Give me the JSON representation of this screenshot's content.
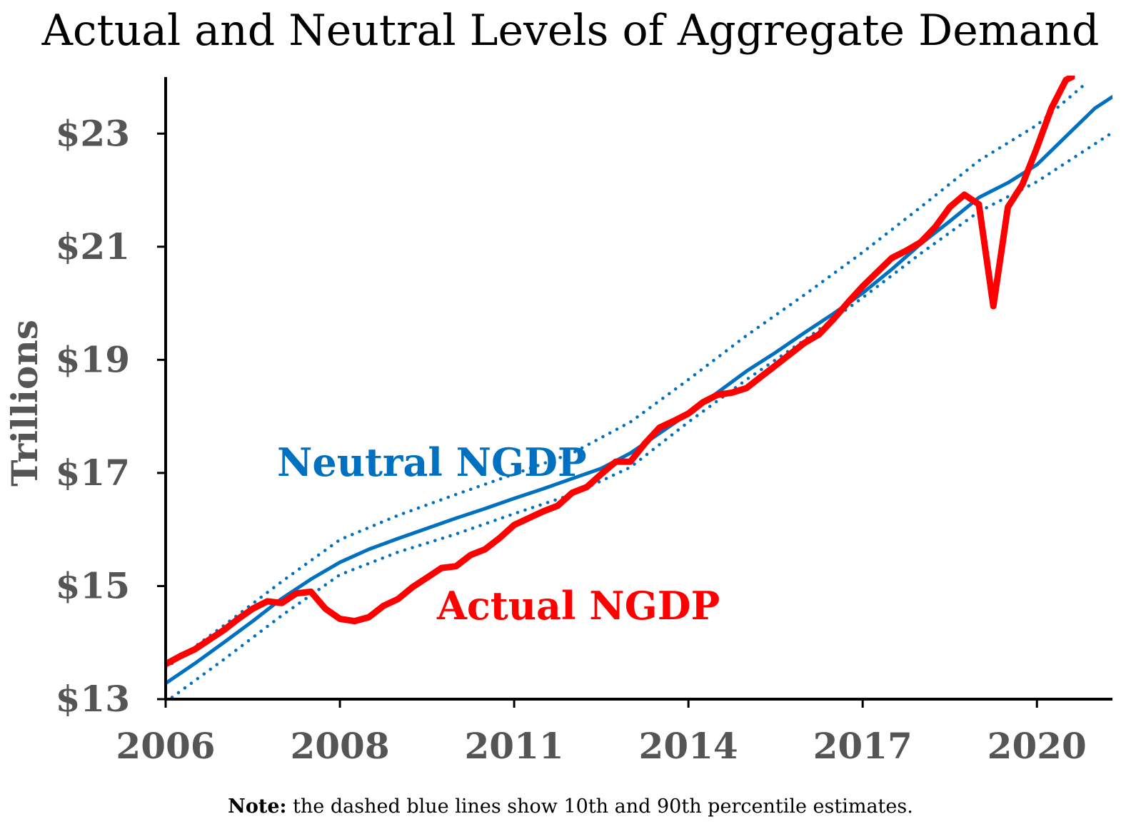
{
  "chart_data": {
    "type": "line",
    "title": "Actual and Neutral Levels of Aggregate Demand",
    "xlabel": "",
    "ylabel": "Trillions",
    "xlim": [
      2006,
      2022.3
    ],
    "ylim": [
      13,
      24
    ],
    "x_ticks": [
      {
        "value": 2006,
        "label": "2006"
      },
      {
        "value": 2009,
        "label": "2008"
      },
      {
        "value": 2012,
        "label": "2011"
      },
      {
        "value": 2015,
        "label": "2014"
      },
      {
        "value": 2018,
        "label": "2017"
      },
      {
        "value": 2021,
        "label": "2020"
      }
    ],
    "y_ticks": [
      {
        "value": 13,
        "label": "$13"
      },
      {
        "value": 15,
        "label": "$15"
      },
      {
        "value": 17,
        "label": "$17"
      },
      {
        "value": 19,
        "label": "$19"
      },
      {
        "value": 21,
        "label": "$21"
      },
      {
        "value": 23,
        "label": "$23"
      }
    ],
    "series": [
      {
        "name": "Actual NGDP",
        "label": "Actual NGDP",
        "color": "#ff0000",
        "style": "solid",
        "points": [
          [
            2006.0,
            13.62
          ],
          [
            2006.25,
            13.76
          ],
          [
            2006.5,
            13.88
          ],
          [
            2006.75,
            14.05
          ],
          [
            2007.0,
            14.22
          ],
          [
            2007.25,
            14.42
          ],
          [
            2007.5,
            14.6
          ],
          [
            2007.75,
            14.73
          ],
          [
            2008.0,
            14.7
          ],
          [
            2008.25,
            14.87
          ],
          [
            2008.5,
            14.9
          ],
          [
            2008.75,
            14.6
          ],
          [
            2009.0,
            14.42
          ],
          [
            2009.25,
            14.38
          ],
          [
            2009.5,
            14.45
          ],
          [
            2009.75,
            14.65
          ],
          [
            2010.0,
            14.77
          ],
          [
            2010.25,
            14.98
          ],
          [
            2010.5,
            15.15
          ],
          [
            2010.75,
            15.32
          ],
          [
            2011.0,
            15.35
          ],
          [
            2011.25,
            15.55
          ],
          [
            2011.5,
            15.65
          ],
          [
            2011.75,
            15.85
          ],
          [
            2012.0,
            16.08
          ],
          [
            2012.25,
            16.2
          ],
          [
            2012.5,
            16.32
          ],
          [
            2012.75,
            16.42
          ],
          [
            2013.0,
            16.65
          ],
          [
            2013.25,
            16.75
          ],
          [
            2013.5,
            16.98
          ],
          [
            2013.75,
            17.2
          ],
          [
            2014.0,
            17.2
          ],
          [
            2014.25,
            17.52
          ],
          [
            2014.5,
            17.8
          ],
          [
            2014.75,
            17.92
          ],
          [
            2015.0,
            18.05
          ],
          [
            2015.25,
            18.25
          ],
          [
            2015.5,
            18.38
          ],
          [
            2015.75,
            18.42
          ],
          [
            2016.0,
            18.5
          ],
          [
            2016.25,
            18.7
          ],
          [
            2016.5,
            18.9
          ],
          [
            2016.75,
            19.1
          ],
          [
            2017.0,
            19.3
          ],
          [
            2017.25,
            19.45
          ],
          [
            2017.5,
            19.72
          ],
          [
            2017.75,
            20.02
          ],
          [
            2018.0,
            20.3
          ],
          [
            2018.25,
            20.55
          ],
          [
            2018.5,
            20.8
          ],
          [
            2018.75,
            20.93
          ],
          [
            2019.0,
            21.08
          ],
          [
            2019.25,
            21.35
          ],
          [
            2019.5,
            21.7
          ],
          [
            2019.75,
            21.92
          ],
          [
            2020.0,
            21.75
          ],
          [
            2020.25,
            19.95
          ],
          [
            2020.5,
            21.7
          ],
          [
            2020.75,
            22.1
          ],
          [
            2021.0,
            22.75
          ],
          [
            2021.25,
            23.45
          ],
          [
            2021.5,
            23.95
          ],
          [
            2021.6,
            24.0
          ]
        ]
      },
      {
        "name": "Neutral NGDP",
        "label": "Neutral NGDP",
        "color": "#0070c0",
        "style": "solid",
        "points": [
          [
            2006.0,
            13.28
          ],
          [
            2006.5,
            13.63
          ],
          [
            2007.0,
            14.0
          ],
          [
            2007.5,
            14.38
          ],
          [
            2008.0,
            14.78
          ],
          [
            2008.5,
            15.12
          ],
          [
            2009.0,
            15.42
          ],
          [
            2009.5,
            15.65
          ],
          [
            2010.0,
            15.84
          ],
          [
            2010.5,
            16.02
          ],
          [
            2011.0,
            16.2
          ],
          [
            2011.5,
            16.37
          ],
          [
            2012.0,
            16.55
          ],
          [
            2012.5,
            16.72
          ],
          [
            2013.0,
            16.9
          ],
          [
            2013.5,
            17.08
          ],
          [
            2014.0,
            17.35
          ],
          [
            2014.5,
            17.7
          ],
          [
            2015.0,
            18.05
          ],
          [
            2015.5,
            18.42
          ],
          [
            2016.0,
            18.8
          ],
          [
            2016.5,
            19.13
          ],
          [
            2017.0,
            19.48
          ],
          [
            2017.5,
            19.82
          ],
          [
            2018.0,
            20.18
          ],
          [
            2018.5,
            20.6
          ],
          [
            2019.0,
            21.05
          ],
          [
            2019.5,
            21.45
          ],
          [
            2020.0,
            21.87
          ],
          [
            2020.5,
            22.13
          ],
          [
            2021.0,
            22.45
          ],
          [
            2021.5,
            22.95
          ],
          [
            2022.0,
            23.45
          ],
          [
            2022.3,
            23.65
          ]
        ]
      },
      {
        "name": "Neutral NGDP 90th percentile",
        "label": "",
        "color": "#0070c0",
        "style": "dotted",
        "points": [
          [
            2006.0,
            13.55
          ],
          [
            2007.0,
            14.3
          ],
          [
            2008.0,
            15.08
          ],
          [
            2009.0,
            15.82
          ],
          [
            2010.0,
            16.25
          ],
          [
            2011.0,
            16.62
          ],
          [
            2012.0,
            16.98
          ],
          [
            2013.0,
            17.35
          ],
          [
            2014.0,
            17.9
          ],
          [
            2015.0,
            18.65
          ],
          [
            2016.0,
            19.43
          ],
          [
            2017.0,
            20.15
          ],
          [
            2018.0,
            20.9
          ],
          [
            2019.0,
            21.7
          ],
          [
            2020.0,
            22.52
          ],
          [
            2021.0,
            23.15
          ],
          [
            2021.8,
            23.85
          ]
        ]
      },
      {
        "name": "Neutral NGDP 10th percentile",
        "label": "",
        "color": "#0070c0",
        "style": "dotted",
        "points": [
          [
            2006.0,
            12.95
          ],
          [
            2007.0,
            13.7
          ],
          [
            2008.0,
            14.48
          ],
          [
            2009.0,
            15.2
          ],
          [
            2010.0,
            15.6
          ],
          [
            2011.0,
            15.92
          ],
          [
            2012.0,
            16.28
          ],
          [
            2013.0,
            16.62
          ],
          [
            2014.0,
            17.1
          ],
          [
            2015.0,
            17.9
          ],
          [
            2016.0,
            18.65
          ],
          [
            2017.0,
            19.35
          ],
          [
            2018.0,
            20.1
          ],
          [
            2019.0,
            20.88
          ],
          [
            2020.0,
            21.62
          ],
          [
            2021.0,
            22.15
          ],
          [
            2022.3,
            23.02
          ]
        ]
      }
    ],
    "annotations": [
      "Neutral NGDP",
      "Actual NGDP"
    ]
  },
  "note": {
    "bold": "Note:",
    "text": " the dashed blue lines show 10th and 90th percentile estimates."
  }
}
